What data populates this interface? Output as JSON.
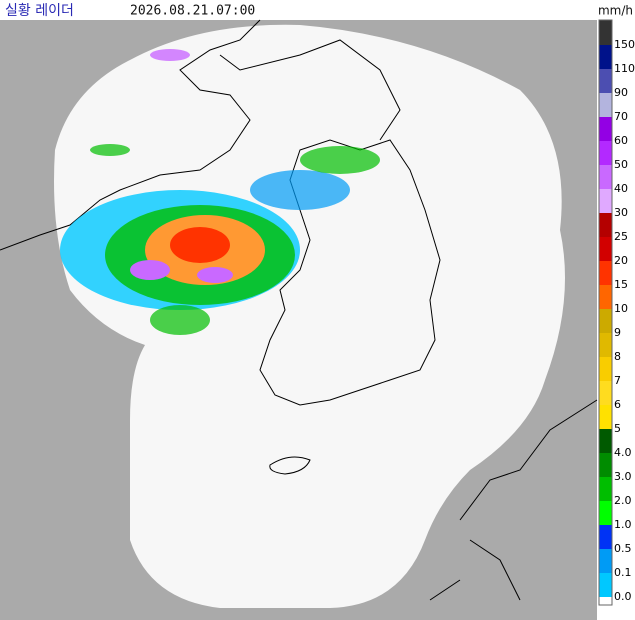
{
  "header": {
    "title": "실황 레이더",
    "timestamp": "2026.08.21.07:00",
    "unit": "mm/h"
  },
  "legend": {
    "above_color": "#333333",
    "entries": [
      {
        "label": "150",
        "color": "#00128a"
      },
      {
        "label": "110",
        "color": "#4c4eb1"
      },
      {
        "label": "90",
        "color": "#b3b4de"
      },
      {
        "label": "70",
        "color": "#9300e4"
      },
      {
        "label": "60",
        "color": "#b329ff"
      },
      {
        "label": "50",
        "color": "#c969ff"
      },
      {
        "label": "40",
        "color": "#e0a9ff"
      },
      {
        "label": "30",
        "color": "#b40000"
      },
      {
        "label": "25",
        "color": "#d20000"
      },
      {
        "label": "20",
        "color": "#ff3300"
      },
      {
        "label": "15",
        "color": "#ff6600"
      },
      {
        "label": "10",
        "color": "#ccaa00"
      },
      {
        "label": "9",
        "color": "#e0b900"
      },
      {
        "label": "8",
        "color": "#f9cd00"
      },
      {
        "label": "7",
        "color": "#ffdc1f"
      },
      {
        "label": "6",
        "color": "#ffe100"
      },
      {
        "label": "5",
        "color": "#005a00"
      },
      {
        "label": "4.0",
        "color": "#008c00"
      },
      {
        "label": "3.0",
        "color": "#00be00"
      },
      {
        "label": "2.0",
        "color": "#00ff00"
      },
      {
        "label": "1.0",
        "color": "#0033f5"
      },
      {
        "label": "0.5",
        "color": "#009bf5"
      },
      {
        "label": "0.1",
        "color": "#00c8ff"
      },
      {
        "label": "0.0",
        "color": "#ffffff"
      }
    ]
  }
}
